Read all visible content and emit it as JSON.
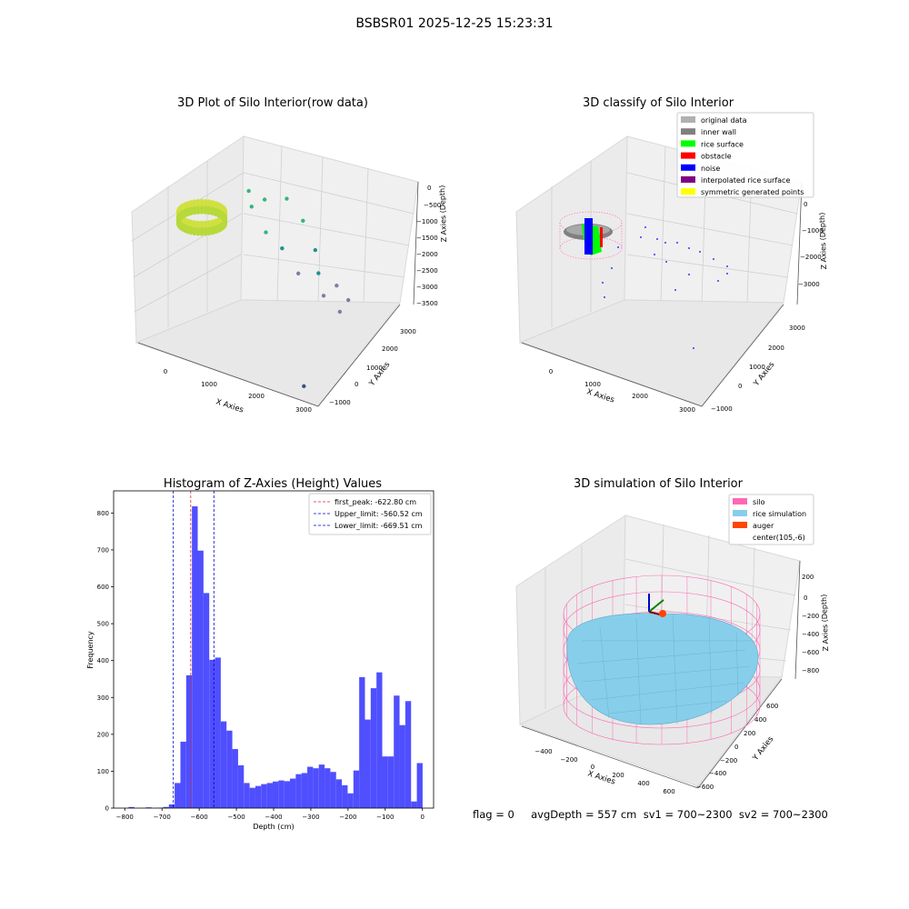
{
  "figure": {
    "suptitle": "BSBSR01 2025-12-25 15:23:31",
    "footer_text": "flag = 0     avgDepth = 557 cm  sv1 = 700~2300  sv2 = 700~2300"
  },
  "colors": {
    "hist_bar": "#4f4fff",
    "peak_line": "#d62728",
    "limit_line": "#0000cc",
    "silo": "#ff69b4",
    "rice": "#87ceeb",
    "auger": "#ff4500",
    "pane": "#f2f2f2",
    "grid": "#d0d0d0"
  },
  "chart_data": [
    {
      "type": "scatter",
      "title": "3D Plot of Silo Interior(row data)",
      "xlabel": "X Axies",
      "ylabel": "Y Axies",
      "zlabel": "Z Axies (Depth)",
      "x_ticks": [
        "0",
        "1000",
        "2000",
        "3000"
      ],
      "y_ticks": [
        "3000",
        "2000",
        "1000",
        "0",
        "−1000"
      ],
      "z_ticks": [
        "0",
        "−500",
        "−1000",
        "−1500",
        "−2000",
        "−2500",
        "−3000",
        "−3500"
      ],
      "xlim": [
        -500,
        3500
      ],
      "ylim": [
        -1200,
        3200
      ],
      "zlim": [
        -3700,
        200
      ],
      "colormap": "viridis_r (by depth)",
      "points_sampled": [
        {
          "x": 650,
          "y": 1400,
          "z": -1100
        },
        {
          "x": 800,
          "y": 1200,
          "z": -1300
        },
        {
          "x": 1000,
          "y": 1400,
          "z": -1200
        },
        {
          "x": 1200,
          "y": 1000,
          "z": -1700
        },
        {
          "x": 1400,
          "y": 1600,
          "z": -1200
        },
        {
          "x": 1600,
          "y": 900,
          "z": -1900
        },
        {
          "x": 1800,
          "y": 1500,
          "z": -1600
        },
        {
          "x": 2000,
          "y": 800,
          "z": -2400
        },
        {
          "x": 2200,
          "y": 1200,
          "z": -2000
        },
        {
          "x": 2400,
          "y": 900,
          "z": -2300
        },
        {
          "x": 2600,
          "y": 700,
          "z": -2700
        },
        {
          "x": 2800,
          "y": 900,
          "z": -2500
        },
        {
          "x": 3000,
          "y": 600,
          "z": -2900
        },
        {
          "x": 3100,
          "y": 800,
          "z": -2700
        },
        {
          "x": 2900,
          "y": -1000,
          "z": -3500
        }
      ]
    },
    {
      "type": "scatter",
      "title": "3D classify of Silo Interior",
      "xlabel": "X Axies",
      "ylabel": "Y Axies",
      "zlabel": "Z Axies (Depth)",
      "x_ticks": [
        "0",
        "1000",
        "2000",
        "3000"
      ],
      "y_ticks": [
        "3000",
        "2000",
        "1000",
        "0",
        "−1000"
      ],
      "z_ticks": [
        "0",
        "−1000",
        "−2000",
        "−3000"
      ],
      "legend_position": "upper right",
      "legend": [
        {
          "label": "original data",
          "color": "#b0b0b0"
        },
        {
          "label": "inner wall",
          "color": "#808080"
        },
        {
          "label": "rice surface",
          "color": "#00ff00"
        },
        {
          "label": "obstacle",
          "color": "#ff0000"
        },
        {
          "label": "noise",
          "color": "#0000ff"
        },
        {
          "label": "interpolated rice surface",
          "color": "#800080"
        },
        {
          "label": "symmetric generated points",
          "color": "#ffff00"
        }
      ]
    },
    {
      "type": "bar",
      "title": "Histogram of Z-Axies (Height) Values",
      "xlabel": "Depth (cm)",
      "ylabel": "Frequency",
      "xlim": [
        -830,
        30
      ],
      "ylim": [
        0,
        860
      ],
      "x_ticks": [
        -800,
        -700,
        -600,
        -500,
        -400,
        -300,
        -200,
        -100,
        0
      ],
      "x_tick_labels": [
        "−800",
        "−700",
        "−600",
        "−500",
        "−400",
        "−300",
        "−200",
        "−100",
        "0"
      ],
      "y_ticks": [
        0,
        100,
        200,
        300,
        400,
        500,
        600,
        700,
        800
      ],
      "bin_start": -790,
      "bin_width": 15.5,
      "values": [
        3,
        0,
        0,
        2,
        0,
        1,
        3,
        10,
        68,
        180,
        360,
        818,
        698,
        583,
        402,
        408,
        235,
        210,
        160,
        116,
        68,
        55,
        60,
        65,
        68,
        72,
        75,
        73,
        80,
        92,
        95,
        112,
        108,
        118,
        108,
        98,
        78,
        62,
        40,
        102,
        355,
        240,
        325,
        368,
        140,
        140,
        305,
        225,
        290,
        18,
        122
      ],
      "vlines": [
        {
          "label": "first_peak: -622.80 cm",
          "x": -622.8,
          "style": "peak"
        },
        {
          "label": "Upper_limit: -560.52 cm",
          "x": -560.52,
          "style": "limit"
        },
        {
          "label": "Lower_limit: -669.51 cm",
          "x": -669.51,
          "style": "limit"
        }
      ],
      "legend_position": "upper right"
    },
    {
      "type": "surface",
      "title": "3D simulation of Silo Interior",
      "xlabel": "X Axies",
      "ylabel": "Y Axies",
      "zlabel": "Z Axies (Depth)",
      "x_ticks": [
        "−400",
        "−200",
        "0",
        "200",
        "400",
        "600"
      ],
      "y_ticks": [
        "600",
        "400",
        "200",
        "0",
        "−200",
        "−400",
        "−600"
      ],
      "z_ticks": [
        "200",
        "0",
        "−200",
        "−400",
        "−600",
        "−800"
      ],
      "legend_position": "upper right",
      "legend": [
        {
          "label": "silo",
          "color": "#ff69b4"
        },
        {
          "label": "rice simulation",
          "color": "#87ceeb"
        },
        {
          "label": "auger",
          "color": "#ff4500"
        },
        {
          "label": "center(105,-6)",
          "color": ""
        }
      ]
    }
  ]
}
